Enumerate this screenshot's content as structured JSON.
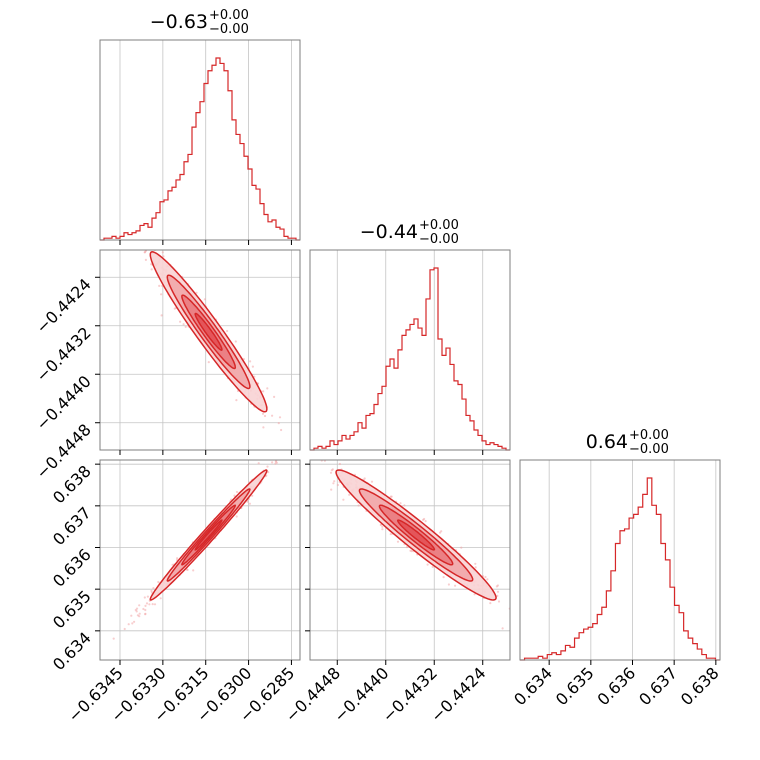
{
  "chart_data": {
    "type": "corner",
    "color": "#d62728",
    "parameters": [
      {
        "title_value": "−0.63",
        "title_upper": "+0.00",
        "title_lower": "−0.00",
        "range": [
          -0.6352,
          -0.6282
        ],
        "ticks": [
          -0.6345,
          -0.633,
          -0.6315,
          -0.63,
          -0.6285
        ],
        "tick_labels": [
          "−0.6345",
          "−0.6330",
          "−0.6315",
          "−0.6300",
          "−0.6285"
        ],
        "hist_rel": [
          0.0,
          0.01,
          0.01,
          0.02,
          0.01,
          0.02,
          0.04,
          0.03,
          0.04,
          0.05,
          0.08,
          0.09,
          0.07,
          0.12,
          0.15,
          0.21,
          0.22,
          0.27,
          0.29,
          0.33,
          0.36,
          0.43,
          0.47,
          0.62,
          0.7,
          0.76,
          0.86,
          0.93,
          0.96,
          1.0,
          0.97,
          0.93,
          0.82,
          0.66,
          0.58,
          0.53,
          0.46,
          0.39,
          0.3,
          0.28,
          0.2,
          0.14,
          0.1,
          0.11,
          0.07,
          0.06,
          0.02,
          0.01,
          0.01,
          0.0
        ]
      },
      {
        "title_value": "−0.44",
        "title_upper": "+0.00",
        "title_lower": "−0.00",
        "range": [
          -0.44525,
          -0.44195
        ],
        "ticks": [
          -0.4448,
          -0.444,
          -0.4432,
          -0.4424
        ],
        "tick_labels": [
          "−0.4448",
          "−0.4440",
          "−0.4432",
          "−0.4424"
        ],
        "hist_rel": [
          0.0,
          0.01,
          0.02,
          0.01,
          0.02,
          0.05,
          0.03,
          0.05,
          0.08,
          0.06,
          0.08,
          0.1,
          0.15,
          0.12,
          0.19,
          0.2,
          0.25,
          0.31,
          0.35,
          0.46,
          0.5,
          0.45,
          0.55,
          0.63,
          0.66,
          0.69,
          0.72,
          0.67,
          0.63,
          0.83,
          0.99,
          1.0,
          0.61,
          0.52,
          0.56,
          0.47,
          0.38,
          0.36,
          0.28,
          0.19,
          0.16,
          0.11,
          0.08,
          0.05,
          0.03,
          0.04,
          0.03,
          0.02,
          0.01,
          0.0
        ]
      },
      {
        "title_value": "0.64",
        "title_upper": "+0.00",
        "title_lower": "−0.00",
        "range": [
          0.6333,
          0.6381
        ],
        "ticks": [
          0.634,
          0.635,
          0.636,
          0.637,
          0.638
        ],
        "tick_labels": [
          "0.634",
          "0.635",
          "0.636",
          "0.637",
          "0.638"
        ],
        "hist_rel": [
          0.0,
          0.01,
          0.01,
          0.01,
          0.02,
          0.01,
          0.03,
          0.04,
          0.03,
          0.05,
          0.08,
          0.07,
          0.12,
          0.15,
          0.17,
          0.18,
          0.2,
          0.25,
          0.29,
          0.38,
          0.49,
          0.64,
          0.71,
          0.72,
          0.78,
          0.8,
          0.84,
          0.91,
          1.0,
          0.85,
          0.8,
          0.64,
          0.55,
          0.4,
          0.3,
          0.26,
          0.16,
          0.12,
          0.09,
          0.06,
          0.03,
          0.01,
          0.01,
          0.0
        ]
      }
    ],
    "pairs": [
      {
        "x": 0,
        "y": 1,
        "center": [
          -0.6314,
          -0.4433
        ],
        "sigma": [
          0.00085,
          0.00055
        ],
        "rho": -0.965
      },
      {
        "x": 0,
        "y": 2,
        "center": [
          -0.6314,
          0.6363
        ],
        "sigma": [
          0.00085,
          0.00065
        ],
        "rho": 0.99
      },
      {
        "x": 1,
        "y": 2,
        "center": [
          -0.4435,
          0.6363
        ],
        "sigma": [
          0.00055,
          0.00065
        ],
        "rho": -0.965
      }
    ],
    "grid": true
  }
}
